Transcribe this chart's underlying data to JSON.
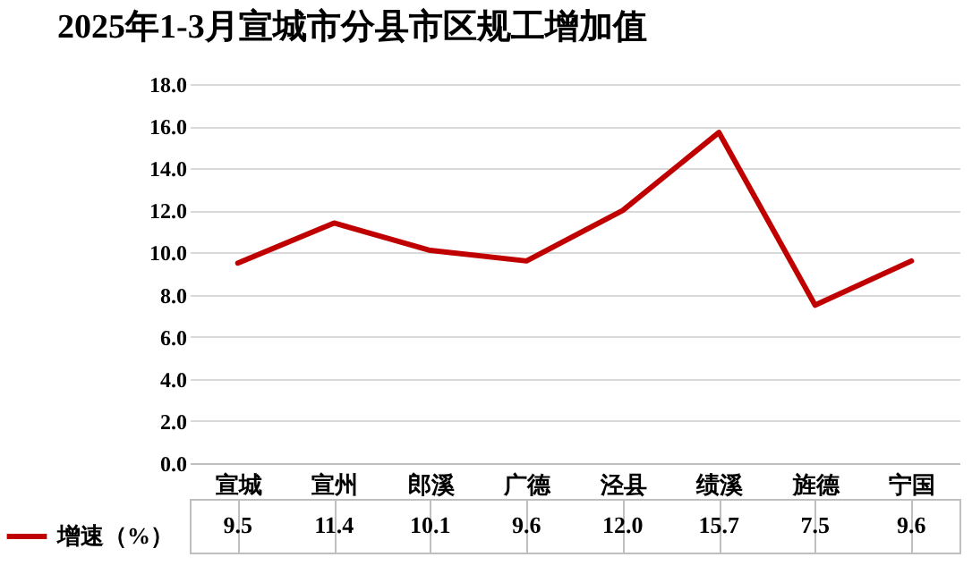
{
  "chart_data": {
    "type": "line",
    "title": "2025年1-3月宣城市分县市区规工增加值",
    "categories": [
      "宣城",
      "宣州",
      "郎溪",
      "广德",
      "泾县",
      "绩溪",
      "旌德",
      "宁国"
    ],
    "series": [
      {
        "name": "增速（%）",
        "color": "#c00000",
        "values": [
          9.5,
          11.4,
          10.1,
          9.6,
          12.0,
          15.7,
          7.5,
          9.6
        ],
        "value_labels": [
          "9.5",
          "11.4",
          "10.1",
          "9.6",
          "12.0",
          "15.7",
          "7.5",
          "9.6"
        ]
      }
    ],
    "ylim": [
      0,
      18
    ],
    "yticks": [
      {
        "value": 0,
        "label": "0.0"
      },
      {
        "value": 2,
        "label": "2.0"
      },
      {
        "value": 4,
        "label": "4.0"
      },
      {
        "value": 6,
        "label": "6.0"
      },
      {
        "value": 8,
        "label": "8.0"
      },
      {
        "value": 10,
        "label": "10.0"
      },
      {
        "value": 12,
        "label": "12.0"
      },
      {
        "value": 14,
        "label": "14.0"
      },
      {
        "value": 16,
        "label": "16.0"
      },
      {
        "value": 18,
        "label": "18.0"
      }
    ],
    "grid": true,
    "legend": "bottom"
  }
}
